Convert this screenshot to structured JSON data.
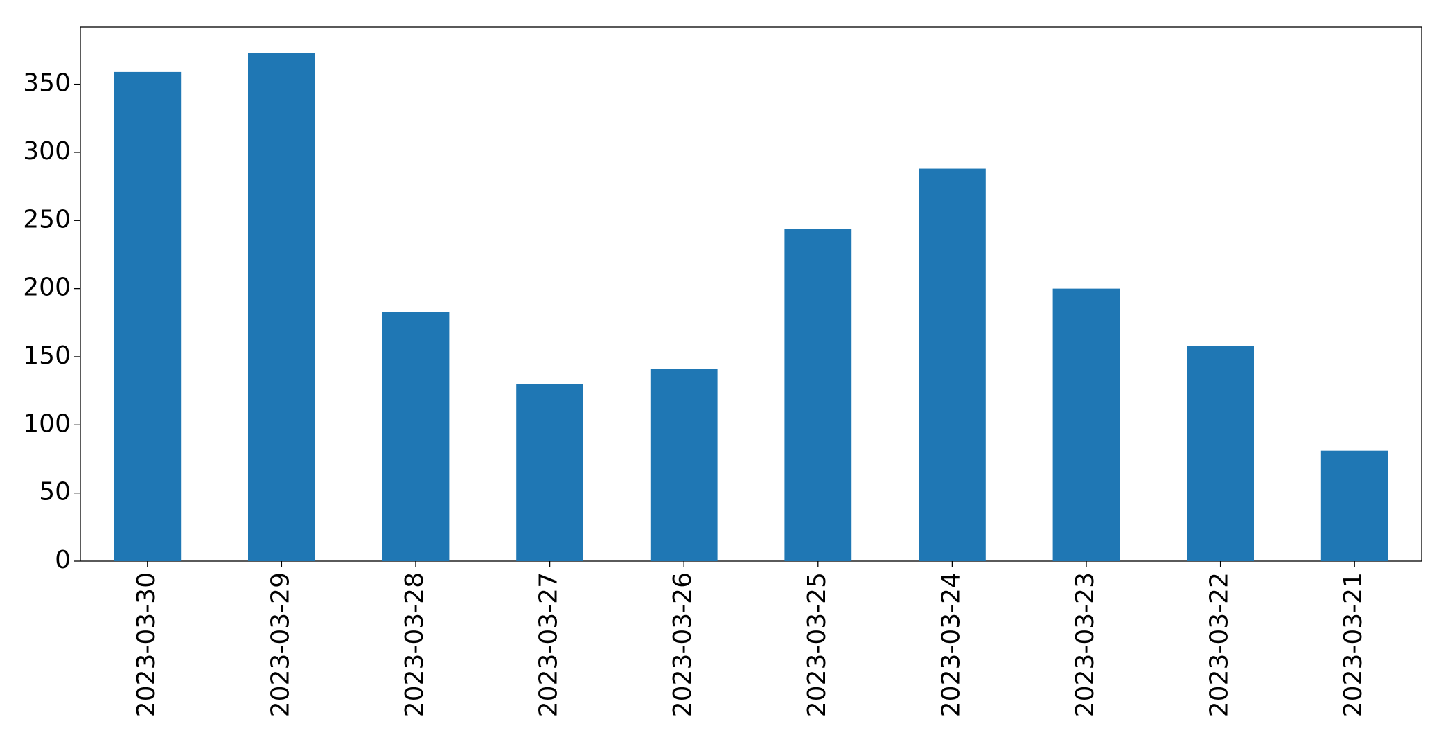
{
  "chart_data": {
    "type": "bar",
    "categories": [
      "2023-03-30",
      "2023-03-29",
      "2023-03-28",
      "2023-03-27",
      "2023-03-26",
      "2023-03-25",
      "2023-03-24",
      "2023-03-23",
      "2023-03-22",
      "2023-03-21"
    ],
    "values": [
      359,
      373,
      183,
      130,
      141,
      244,
      288,
      200,
      158,
      81
    ],
    "color": "#1f77b4",
    "ylim": [
      0,
      392
    ],
    "yticks": [
      0,
      50,
      100,
      150,
      200,
      250,
      300,
      350
    ],
    "grid": false
  }
}
